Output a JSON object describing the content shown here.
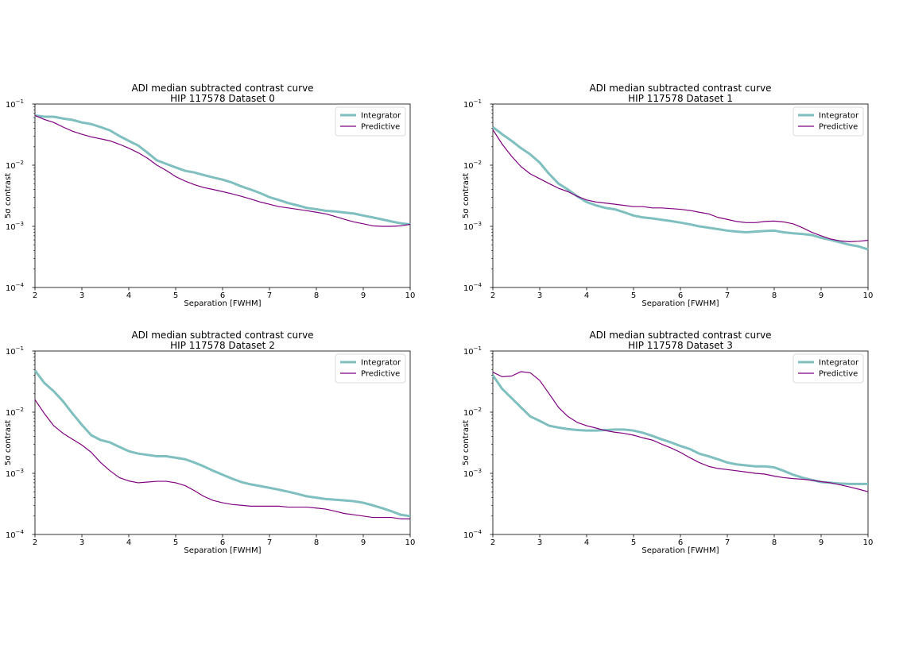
{
  "chart_data": [
    {
      "type": "line",
      "title": [
        "ADI median subtracted contrast curve",
        "HIP 117578 Dataset 0"
      ],
      "xlabel": "Separation [FWHM]",
      "ylabel": "5σ contrast",
      "xlim": [
        2,
        10
      ],
      "ylim": [
        0.0001,
        0.1
      ],
      "yscale": "log",
      "xticks": [
        "2",
        "3",
        "4",
        "5",
        "6",
        "7",
        "8",
        "9",
        "10"
      ],
      "yticks": [
        {
          "base": "10",
          "exp": "−1"
        },
        {
          "base": "10",
          "exp": "−2"
        },
        {
          "base": "10",
          "exp": "−3"
        },
        {
          "base": "10",
          "exp": "−4"
        }
      ],
      "legend": "top-right",
      "series": [
        {
          "name": "Integrator",
          "color": "#7fbfbf",
          "x": [
            2,
            2.2,
            2.4,
            2.6,
            2.8,
            3,
            3.2,
            3.4,
            3.6,
            3.8,
            4,
            4.2,
            4.4,
            4.6,
            4.8,
            5,
            5.2,
            5.4,
            5.6,
            5.8,
            6,
            6.2,
            6.4,
            6.6,
            6.8,
            7,
            7.2,
            7.4,
            7.6,
            7.8,
            8,
            8.2,
            8.4,
            8.6,
            8.8,
            9,
            9.2,
            9.4,
            9.6,
            9.8,
            10
          ],
          "y": [
            0.065,
            0.062,
            0.062,
            0.058,
            0.055,
            0.05,
            0.047,
            0.042,
            0.037,
            0.03,
            0.025,
            0.021,
            0.016,
            0.012,
            0.0105,
            0.0092,
            0.0081,
            0.0076,
            0.0069,
            0.0063,
            0.0058,
            0.0052,
            0.0045,
            0.004,
            0.0035,
            0.003,
            0.0027,
            0.0024,
            0.0022,
            0.002,
            0.0019,
            0.0018,
            0.00175,
            0.00168,
            0.00162,
            0.0015,
            0.0014,
            0.0013,
            0.0012,
            0.00112,
            0.00108
          ]
        },
        {
          "name": "Predictive",
          "color": "#800080",
          "x": [
            2,
            2.2,
            2.4,
            2.6,
            2.8,
            3,
            3.2,
            3.4,
            3.6,
            3.8,
            4,
            4.2,
            4.4,
            4.6,
            4.8,
            5,
            5.2,
            5.4,
            5.6,
            5.8,
            6,
            6.2,
            6.4,
            6.6,
            6.8,
            7,
            7.2,
            7.4,
            7.6,
            7.8,
            8,
            8.2,
            8.4,
            8.6,
            8.8,
            9,
            9.2,
            9.4,
            9.6,
            9.8,
            10
          ],
          "y": [
            0.065,
            0.056,
            0.05,
            0.042,
            0.036,
            0.032,
            0.029,
            0.027,
            0.025,
            0.022,
            0.019,
            0.016,
            0.013,
            0.01,
            0.0082,
            0.0065,
            0.0055,
            0.0048,
            0.0043,
            0.004,
            0.0037,
            0.0034,
            0.0031,
            0.0028,
            0.0025,
            0.0023,
            0.0021,
            0.002,
            0.0019,
            0.0018,
            0.0017,
            0.0016,
            0.00145,
            0.0013,
            0.00118,
            0.0011,
            0.00102,
            0.001,
            0.001,
            0.00102,
            0.00108
          ]
        }
      ]
    },
    {
      "type": "line",
      "title": [
        "ADI median subtracted contrast curve",
        "HIP 117578 Dataset 1"
      ],
      "xlabel": "Separation [FWHM]",
      "ylabel": "5σ contrast",
      "xlim": [
        2,
        10
      ],
      "ylim": [
        0.0001,
        0.1
      ],
      "yscale": "log",
      "xticks": [
        "2",
        "3",
        "4",
        "5",
        "6",
        "7",
        "8",
        "9",
        "10"
      ],
      "yticks": [
        {
          "base": "10",
          "exp": "−1"
        },
        {
          "base": "10",
          "exp": "−2"
        },
        {
          "base": "10",
          "exp": "−3"
        },
        {
          "base": "10",
          "exp": "−4"
        }
      ],
      "legend": "top-right",
      "series": [
        {
          "name": "Integrator",
          "color": "#7fbfbf",
          "x": [
            2,
            2.2,
            2.4,
            2.6,
            2.8,
            3,
            3.2,
            3.4,
            3.6,
            3.8,
            4,
            4.2,
            4.4,
            4.6,
            4.8,
            5,
            5.2,
            5.4,
            5.6,
            5.8,
            6,
            6.2,
            6.4,
            6.6,
            6.8,
            7,
            7.2,
            7.4,
            7.6,
            7.8,
            8,
            8.2,
            8.4,
            8.6,
            8.8,
            9,
            9.2,
            9.4,
            9.6,
            9.8,
            10
          ],
          "y": [
            0.042,
            0.032,
            0.025,
            0.019,
            0.015,
            0.011,
            0.0072,
            0.005,
            0.004,
            0.0031,
            0.0025,
            0.0022,
            0.002,
            0.0019,
            0.0017,
            0.0015,
            0.0014,
            0.00135,
            0.00128,
            0.00122,
            0.00115,
            0.00108,
            0.001,
            0.00095,
            0.0009,
            0.00085,
            0.00082,
            0.0008,
            0.00082,
            0.00084,
            0.00085,
            0.0008,
            0.00077,
            0.00075,
            0.00072,
            0.00065,
            0.0006,
            0.00055,
            0.0005,
            0.00047,
            0.00042
          ]
        },
        {
          "name": "Predictive",
          "color": "#800080",
          "x": [
            2,
            2.2,
            2.4,
            2.6,
            2.8,
            3,
            3.2,
            3.4,
            3.6,
            3.8,
            4,
            4.2,
            4.4,
            4.6,
            4.8,
            5,
            5.2,
            5.4,
            5.6,
            5.8,
            6,
            6.2,
            6.4,
            6.6,
            6.8,
            7,
            7.2,
            7.4,
            7.6,
            7.8,
            8,
            8.2,
            8.4,
            8.6,
            8.8,
            9,
            9.2,
            9.4,
            9.6,
            9.8,
            10
          ],
          "y": [
            0.038,
            0.022,
            0.014,
            0.0095,
            0.0072,
            0.006,
            0.005,
            0.0042,
            0.0037,
            0.0031,
            0.0027,
            0.0025,
            0.0024,
            0.0023,
            0.0022,
            0.0021,
            0.0021,
            0.002,
            0.002,
            0.00195,
            0.0019,
            0.00182,
            0.0017,
            0.0016,
            0.0014,
            0.0013,
            0.0012,
            0.00115,
            0.00115,
            0.0012,
            0.00122,
            0.00118,
            0.0011,
            0.00095,
            0.0008,
            0.0007,
            0.00062,
            0.00058,
            0.00056,
            0.00057,
            0.00059
          ]
        }
      ]
    },
    {
      "type": "line",
      "title": [
        "ADI median subtracted contrast curve",
        "HIP 117578 Dataset 2"
      ],
      "xlabel": "Separation [FWHM]",
      "ylabel": "5σ contrast",
      "xlim": [
        2,
        10
      ],
      "ylim": [
        0.0001,
        0.1
      ],
      "yscale": "log",
      "xticks": [
        "2",
        "3",
        "4",
        "5",
        "6",
        "7",
        "8",
        "9",
        "10"
      ],
      "yticks": [
        {
          "base": "10",
          "exp": "−1"
        },
        {
          "base": "10",
          "exp": "−2"
        },
        {
          "base": "10",
          "exp": "−3"
        },
        {
          "base": "10",
          "exp": "−4"
        }
      ],
      "legend": "top-right",
      "series": [
        {
          "name": "Integrator",
          "color": "#7fbfbf",
          "x": [
            2,
            2.2,
            2.4,
            2.6,
            2.8,
            3,
            3.2,
            3.4,
            3.6,
            3.8,
            4,
            4.2,
            4.4,
            4.6,
            4.8,
            5,
            5.2,
            5.4,
            5.6,
            5.8,
            6,
            6.2,
            6.4,
            6.6,
            6.8,
            7,
            7.2,
            7.4,
            7.6,
            7.8,
            8,
            8.2,
            8.4,
            8.6,
            8.8,
            9,
            9.2,
            9.4,
            9.6,
            9.8,
            10
          ],
          "y": [
            0.048,
            0.03,
            0.022,
            0.015,
            0.0095,
            0.0062,
            0.0042,
            0.0035,
            0.0032,
            0.0027,
            0.0023,
            0.0021,
            0.002,
            0.0019,
            0.0019,
            0.0018,
            0.0017,
            0.0015,
            0.0013,
            0.0011,
            0.00095,
            0.00082,
            0.00072,
            0.00066,
            0.00062,
            0.00058,
            0.00054,
            0.0005,
            0.00046,
            0.00042,
            0.0004,
            0.00038,
            0.00037,
            0.00036,
            0.00035,
            0.00033,
            0.0003,
            0.00027,
            0.00024,
            0.00021,
            0.0002
          ]
        },
        {
          "name": "Predictive",
          "color": "#800080",
          "x": [
            2,
            2.2,
            2.4,
            2.6,
            2.8,
            3,
            3.2,
            3.4,
            3.6,
            3.8,
            4,
            4.2,
            4.4,
            4.6,
            4.8,
            5,
            5.2,
            5.4,
            5.6,
            5.8,
            6,
            6.2,
            6.4,
            6.6,
            6.8,
            7,
            7.2,
            7.4,
            7.6,
            7.8,
            8,
            8.2,
            8.4,
            8.6,
            8.8,
            9,
            9.2,
            9.4,
            9.6,
            9.8,
            10
          ],
          "y": [
            0.016,
            0.0095,
            0.006,
            0.0045,
            0.0036,
            0.0029,
            0.0022,
            0.0015,
            0.0011,
            0.00085,
            0.00075,
            0.0007,
            0.00072,
            0.00074,
            0.00074,
            0.0007,
            0.00063,
            0.00052,
            0.00042,
            0.00036,
            0.00033,
            0.00031,
            0.0003,
            0.00029,
            0.00029,
            0.00029,
            0.00029,
            0.00028,
            0.00028,
            0.00028,
            0.00027,
            0.00026,
            0.00024,
            0.00022,
            0.00021,
            0.0002,
            0.00019,
            0.00019,
            0.00019,
            0.00018,
            0.00018
          ]
        }
      ]
    },
    {
      "type": "line",
      "title": [
        "ADI median subtracted contrast curve",
        "HIP 117578 Dataset 3"
      ],
      "xlabel": "Separation [FWHM]",
      "ylabel": "5σ contrast",
      "xlim": [
        2,
        10
      ],
      "ylim": [
        0.0001,
        0.1
      ],
      "yscale": "log",
      "xticks": [
        "2",
        "3",
        "4",
        "5",
        "6",
        "7",
        "8",
        "9",
        "10"
      ],
      "yticks": [
        {
          "base": "10",
          "exp": "−1"
        },
        {
          "base": "10",
          "exp": "−2"
        },
        {
          "base": "10",
          "exp": "−3"
        },
        {
          "base": "10",
          "exp": "−4"
        }
      ],
      "legend": "top-right",
      "series": [
        {
          "name": "Integrator",
          "color": "#7fbfbf",
          "x": [
            2,
            2.2,
            2.4,
            2.6,
            2.8,
            3,
            3.2,
            3.4,
            3.6,
            3.8,
            4,
            4.2,
            4.4,
            4.6,
            4.8,
            5,
            5.2,
            5.4,
            5.6,
            5.8,
            6,
            6.2,
            6.4,
            6.6,
            6.8,
            7,
            7.2,
            7.4,
            7.6,
            7.8,
            8,
            8.2,
            8.4,
            8.6,
            8.8,
            9,
            9.2,
            9.4,
            9.6,
            9.8,
            10
          ],
          "y": [
            0.04,
            0.024,
            0.017,
            0.012,
            0.0085,
            0.0072,
            0.006,
            0.0056,
            0.0053,
            0.0051,
            0.005,
            0.005,
            0.0051,
            0.0052,
            0.0052,
            0.005,
            0.0046,
            0.0041,
            0.0036,
            0.0032,
            0.0028,
            0.0025,
            0.0021,
            0.0019,
            0.0017,
            0.0015,
            0.0014,
            0.00135,
            0.0013,
            0.0013,
            0.00125,
            0.0011,
            0.00095,
            0.00085,
            0.00078,
            0.00072,
            0.0007,
            0.00068,
            0.00067,
            0.00067,
            0.00067
          ]
        },
        {
          "name": "Predictive",
          "color": "#800080",
          "x": [
            2,
            2.2,
            2.4,
            2.6,
            2.8,
            3,
            3.2,
            3.4,
            3.6,
            3.8,
            4,
            4.2,
            4.4,
            4.6,
            4.8,
            5,
            5.2,
            5.4,
            5.6,
            5.8,
            6,
            6.2,
            6.4,
            6.6,
            6.8,
            7,
            7.2,
            7.4,
            7.6,
            7.8,
            8,
            8.2,
            8.4,
            8.6,
            8.8,
            9,
            9.2,
            9.4,
            9.6,
            9.8,
            10
          ],
          "y": [
            0.045,
            0.038,
            0.039,
            0.046,
            0.044,
            0.033,
            0.02,
            0.012,
            0.0085,
            0.0068,
            0.006,
            0.0055,
            0.005,
            0.0047,
            0.0045,
            0.0042,
            0.0038,
            0.0035,
            0.003,
            0.0026,
            0.0022,
            0.0018,
            0.0015,
            0.0013,
            0.0012,
            0.00115,
            0.0011,
            0.00105,
            0.001,
            0.00097,
            0.0009,
            0.00085,
            0.00082,
            0.0008,
            0.00077,
            0.00073,
            0.0007,
            0.00065,
            0.0006,
            0.00055,
            0.0005
          ]
        }
      ]
    }
  ]
}
